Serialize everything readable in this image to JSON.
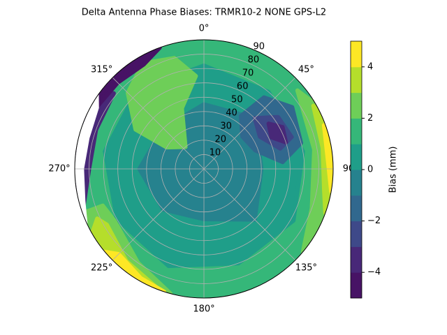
{
  "chart_data": {
    "type": "polar-contour",
    "title": "Delta Antenna Phase Biases: TRMR10-2        NONE GPS-L2",
    "angle_ticks": [
      {
        "value": 0,
        "label": "0°"
      },
      {
        "value": 45,
        "label": "45°"
      },
      {
        "value": 90,
        "label": "90"
      },
      {
        "value": 135,
        "label": "135°"
      },
      {
        "value": 180,
        "label": "180°"
      },
      {
        "value": 225,
        "label": "225°"
      },
      {
        "value": 270,
        "label": "270°"
      },
      {
        "value": 315,
        "label": "315°"
      }
    ],
    "rlim": [
      0,
      90
    ],
    "rticks": [
      10,
      20,
      30,
      40,
      50,
      60,
      70,
      80,
      90
    ],
    "grid": true,
    "colorbar": {
      "label": "Bias (mm)",
      "clim": [
        -5,
        5
      ],
      "ticks": [
        {
          "value": -4,
          "label": "−4"
        },
        {
          "value": -2,
          "label": "−2"
        },
        0,
        2,
        4
      ],
      "levels": [
        -5,
        -4,
        -3,
        -2,
        -1,
        0,
        1,
        2,
        3,
        4,
        5
      ],
      "colors": [
        "#471365",
        "#482878",
        "#3e4989",
        "#31688e",
        "#26828e",
        "#1f9e89",
        "#35b779",
        "#6ece58",
        "#b5de2b",
        "#fde725"
      ]
    },
    "base_value": 1.5,
    "regions": [
      {
        "value": 0.5,
        "azimuth": [
          0,
          40,
          80,
          120,
          160,
          200,
          240,
          280,
          320
        ],
        "zenith": [
          72,
          70,
          70,
          72,
          70,
          72,
          70,
          70,
          72
        ]
      },
      {
        "value": -0.5,
        "azimuth": [
          0,
          45,
          90,
          135,
          180,
          225,
          270,
          315
        ],
        "zenith": [
          45,
          50,
          40,
          50,
          35,
          40,
          45,
          40
        ]
      },
      {
        "value": -1.5,
        "azimuth": [
          35,
          50,
          70,
          85,
          75,
          55,
          40
        ],
        "zenith": [
          45,
          35,
          38,
          55,
          70,
          75,
          65
        ]
      },
      {
        "value": -2.5,
        "azimuth": [
          45,
          60,
          75,
          70,
          55
        ],
        "zenith": [
          50,
          45,
          55,
          65,
          63
        ]
      },
      {
        "value": -3.5,
        "azimuth": [
          55,
          65,
          72,
          62
        ],
        "zenith": [
          55,
          52,
          60,
          62
        ]
      },
      {
        "value": 2.5,
        "azimuth": [
          300,
          320,
          340,
          355,
          345,
          330,
          315,
          300
        ],
        "zenith": [
          30,
          20,
          45,
          65,
          80,
          85,
          75,
          55
        ]
      },
      {
        "value": 2.5,
        "azimuth": [
          50,
          80,
          110,
          130,
          110,
          80,
          60
        ],
        "zenith": [
          85,
          78,
          80,
          90,
          90,
          90,
          90
        ]
      },
      {
        "value": 3.5,
        "azimuth": [
          60,
          80,
          100,
          110,
          100,
          80,
          65
        ],
        "zenith": [
          88,
          84,
          85,
          90,
          90,
          90,
          90
        ]
      },
      {
        "value": 4.5,
        "azimuth": [
          70,
          90,
          100,
          90,
          75
        ],
        "zenith": [
          89,
          87,
          90,
          90,
          90
        ]
      },
      {
        "value": 2.5,
        "azimuth": [
          195,
          215,
          240,
          250,
          250,
          230,
          210,
          195
        ],
        "zenith": [
          90,
          80,
          72,
          75,
          90,
          90,
          90,
          90
        ]
      },
      {
        "value": 3.5,
        "azimuth": [
          200,
          220,
          240,
          245,
          240,
          220,
          205
        ],
        "zenith": [
          90,
          84,
          78,
          82,
          90,
          90,
          90
        ]
      },
      {
        "value": 4.5,
        "azimuth": [
          198,
          210,
          225,
          230,
          215,
          200
        ],
        "zenith": [
          90,
          88,
          84,
          90,
          90,
          90
        ]
      },
      {
        "value": -3.5,
        "azimuth": [
          250,
          270,
          290,
          310,
          305,
          285,
          265,
          250
        ],
        "zenith": [
          90,
          80,
          80,
          82,
          90,
          90,
          90,
          90
        ]
      },
      {
        "value": -4.5,
        "azimuth": [
          295,
          315,
          330,
          340,
          330,
          315,
          300
        ],
        "zenith": [
          88,
          85,
          84,
          90,
          90,
          90,
          90
        ]
      }
    ],
    "mask": {
      "azimuth": [
        245,
        255,
        270,
        285,
        300,
        305,
        300,
        285,
        270,
        255,
        245
      ],
      "zenith": [
        90,
        86,
        84,
        83,
        85,
        90,
        90,
        90,
        90,
        90,
        90
      ]
    }
  }
}
